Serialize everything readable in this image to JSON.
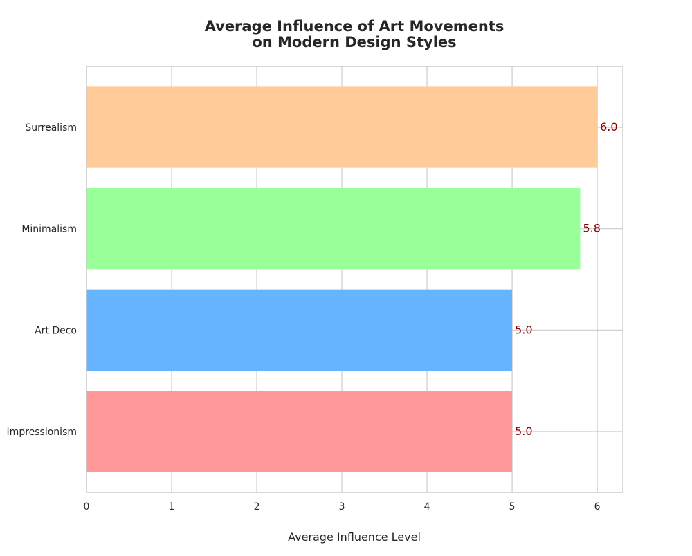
{
  "chart_data": {
    "type": "bar",
    "orientation": "horizontal",
    "title": "Average Influence of Art Movements\non Modern Design Styles",
    "xlabel": "Average Influence Level",
    "ylabel": "",
    "categories": [
      "Impressionism",
      "Art Deco",
      "Minimalism",
      "Surrealism"
    ],
    "values": [
      5.0,
      5.0,
      5.8,
      6.0
    ],
    "value_labels": [
      "5.0",
      "5.0",
      "5.8",
      "6.0"
    ],
    "colors": [
      "#ff9999",
      "#66b3ff",
      "#99ff99",
      "#ffcc99"
    ],
    "label_color": "#8b0000",
    "xlim": [
      0,
      6.3
    ],
    "xticks": [
      0,
      1,
      2,
      3,
      4,
      5,
      6
    ],
    "grid": true,
    "legend": "none"
  }
}
